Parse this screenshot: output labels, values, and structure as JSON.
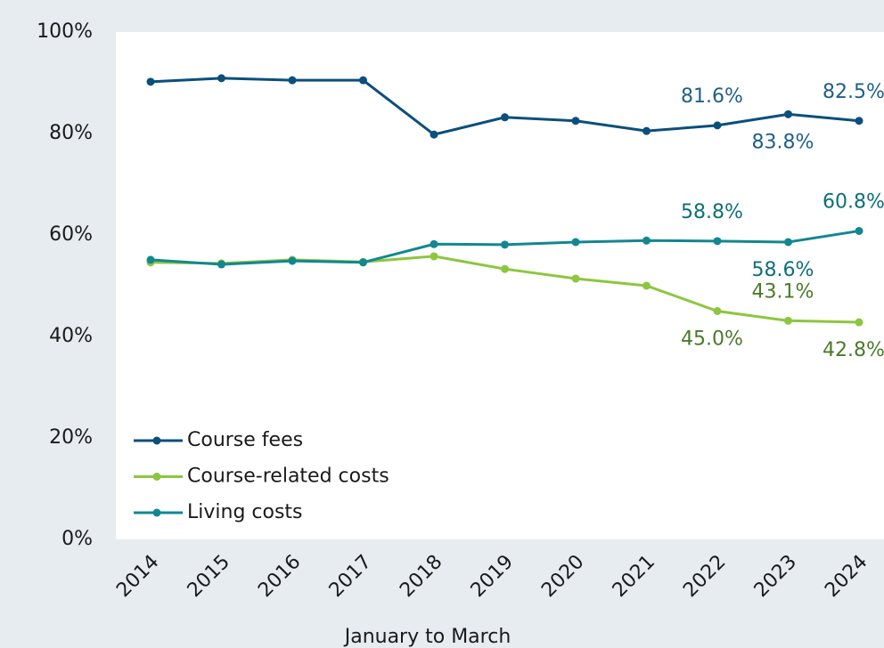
{
  "chart_data": {
    "type": "line",
    "x_label": "January to March",
    "categories": [
      "2014",
      "2015",
      "2016",
      "2017",
      "2018",
      "2019",
      "2020",
      "2021",
      "2022",
      "2023",
      "2024"
    ],
    "series": [
      {
        "name": "Course fees",
        "color": "#0b4f7c",
        "label_color": "#1f5f8b",
        "values": [
          90.2,
          90.9,
          90.5,
          90.5,
          79.8,
          83.2,
          82.5,
          80.5,
          81.6,
          83.8,
          82.5
        ],
        "value_labels": [
          null,
          null,
          null,
          null,
          null,
          null,
          null,
          null,
          "81.6%",
          "83.8%",
          "82.5%"
        ]
      },
      {
        "name": "Course-related costs",
        "color": "#8dc63f",
        "label_color": "#4a7a2a",
        "values": [
          54.6,
          54.4,
          55.1,
          54.7,
          55.8,
          53.3,
          51.4,
          50.0,
          45.0,
          43.1,
          42.8
        ],
        "value_labels": [
          null,
          null,
          null,
          null,
          null,
          null,
          null,
          null,
          "45.0%",
          "43.1%",
          "42.8%"
        ]
      },
      {
        "name": "Living costs",
        "color": "#128791",
        "label_color": "#0e6f78",
        "values": [
          55.1,
          54.2,
          54.9,
          54.6,
          58.2,
          58.1,
          58.6,
          58.9,
          58.8,
          58.6,
          60.8
        ],
        "value_labels": [
          null,
          null,
          null,
          null,
          null,
          null,
          null,
          null,
          "58.8%",
          "58.6%",
          "60.8%"
        ]
      }
    ],
    "ylim": [
      0,
      100
    ],
    "yticks": [
      {
        "value": 0,
        "label": "0%"
      },
      {
        "value": 20,
        "label": "20%"
      },
      {
        "value": 40,
        "label": "40%"
      },
      {
        "value": 60,
        "label": "60%"
      },
      {
        "value": 80,
        "label": "80%"
      },
      {
        "value": 100,
        "label": "100%"
      }
    ],
    "grid": false,
    "legend": "lower left"
  }
}
